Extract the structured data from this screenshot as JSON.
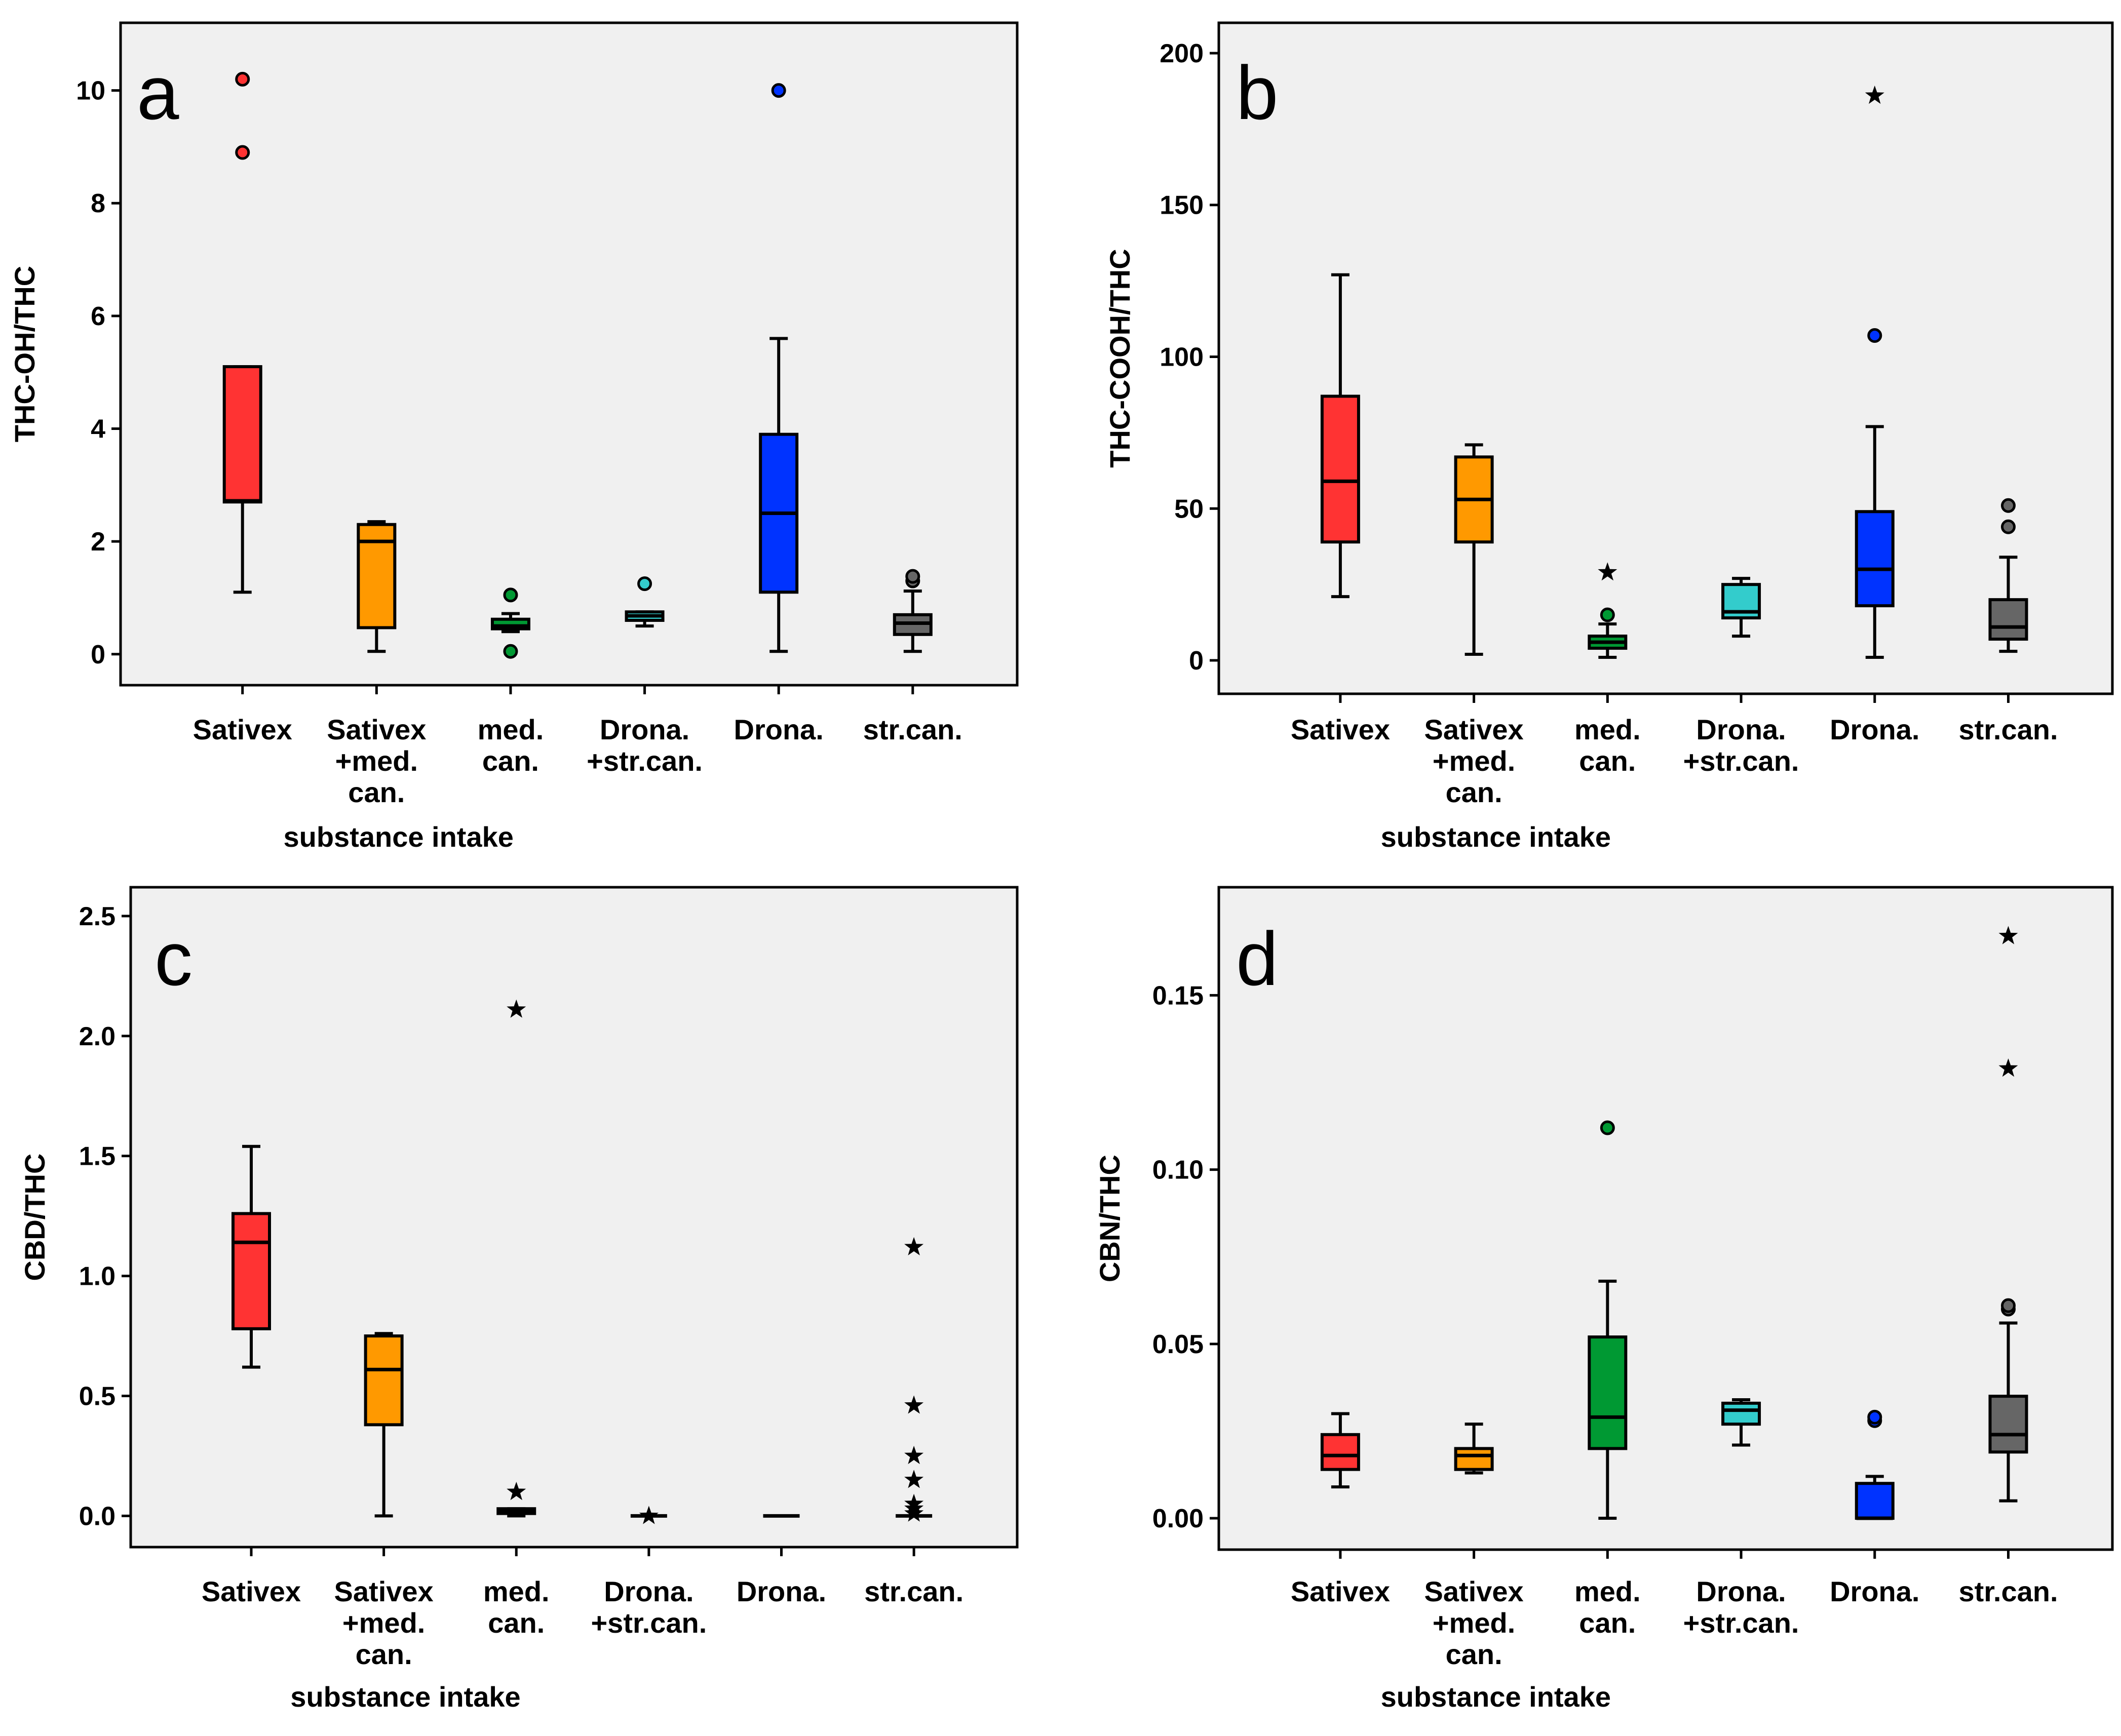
{
  "chart_data": [
    {
      "type": "box",
      "panel_label": "a",
      "title": "",
      "xlabel": "substance intake",
      "ylabel": "THC-OH/THC",
      "ylim": [
        -0.55,
        11.2
      ],
      "yticks": [
        0,
        2,
        4,
        6,
        8,
        10
      ],
      "ytick_labels": [
        "0",
        "2",
        "4",
        "6",
        "8",
        "10"
      ],
      "grid": false,
      "categories": [
        {
          "lines": [
            "Sativex"
          ]
        },
        {
          "lines": [
            "Sativex",
            "+med.",
            "can."
          ]
        },
        {
          "lines": [
            "med.",
            "can."
          ]
        },
        {
          "lines": [
            "Drona.",
            "+str.can."
          ]
        },
        {
          "lines": [
            "Drona."
          ]
        },
        {
          "lines": [
            "str.can."
          ]
        }
      ],
      "boxes": [
        {
          "color": "#ff3333",
          "whisker_low": 1.1,
          "q1": 2.7,
          "median": 2.72,
          "q3": 5.1,
          "whisker_high": 5.1,
          "outliers": [
            8.9,
            10.2
          ],
          "extremes": []
        },
        {
          "color": "#ff9900",
          "whisker_low": 0.05,
          "q1": 0.47,
          "median": 2.0,
          "q3": 2.3,
          "whisker_high": 2.35,
          "outliers": [],
          "extremes": []
        },
        {
          "color": "#009933",
          "whisker_low": 0.4,
          "q1": 0.45,
          "median": 0.5,
          "q3": 0.62,
          "whisker_high": 0.72,
          "outliers": [
            0.05,
            1.05
          ],
          "extremes": []
        },
        {
          "color": "#33cccc",
          "whisker_low": 0.5,
          "q1": 0.6,
          "median": 0.68,
          "q3": 0.75,
          "whisker_high": 0.75,
          "outliers": [
            1.25
          ],
          "extremes": []
        },
        {
          "color": "#0033ff",
          "whisker_low": 0.05,
          "q1": 1.1,
          "median": 2.5,
          "q3": 3.9,
          "whisker_high": 5.6,
          "outliers": [
            10.0
          ],
          "extremes": []
        },
        {
          "color": "#666666",
          "whisker_low": 0.05,
          "q1": 0.35,
          "median": 0.55,
          "q3": 0.7,
          "whisker_high": 1.12,
          "outliers": [
            1.3,
            1.38
          ],
          "extremes": []
        }
      ]
    },
    {
      "type": "box",
      "panel_label": "b",
      "title": "",
      "xlabel": "substance intake",
      "ylabel": "THC-COOH/THC",
      "ylim": [
        -11,
        210
      ],
      "yticks": [
        0,
        50,
        100,
        150,
        200
      ],
      "ytick_labels": [
        "0",
        "50",
        "100",
        "150",
        "200"
      ],
      "grid": false,
      "categories": [
        {
          "lines": [
            "Sativex"
          ]
        },
        {
          "lines": [
            "Sativex",
            "+med.",
            "can."
          ]
        },
        {
          "lines": [
            "med.",
            "can."
          ]
        },
        {
          "lines": [
            "Drona.",
            "+str.can."
          ]
        },
        {
          "lines": [
            "Drona."
          ]
        },
        {
          "lines": [
            "str.can."
          ]
        }
      ],
      "boxes": [
        {
          "color": "#ff3333",
          "whisker_low": 21,
          "q1": 39,
          "median": 59,
          "q3": 87,
          "whisker_high": 127,
          "outliers": [],
          "extremes": []
        },
        {
          "color": "#ff9900",
          "whisker_low": 2,
          "q1": 39,
          "median": 53,
          "q3": 67,
          "whisker_high": 71,
          "outliers": [],
          "extremes": []
        },
        {
          "color": "#009933",
          "whisker_low": 1,
          "q1": 4,
          "median": 6,
          "q3": 8,
          "whisker_high": 12,
          "outliers": [
            15
          ],
          "extremes": [
            29
          ]
        },
        {
          "color": "#33cccc",
          "whisker_low": 8,
          "q1": 14,
          "median": 16,
          "q3": 25,
          "whisker_high": 27,
          "outliers": [],
          "extremes": []
        },
        {
          "color": "#0033ff",
          "whisker_low": 1,
          "q1": 18,
          "median": 30,
          "q3": 49,
          "whisker_high": 77,
          "outliers": [
            107
          ],
          "extremes": [
            186
          ]
        },
        {
          "color": "#666666",
          "whisker_low": 3,
          "q1": 7,
          "median": 11,
          "q3": 20,
          "whisker_high": 34,
          "outliers": [
            44,
            51
          ],
          "extremes": []
        }
      ]
    },
    {
      "type": "box",
      "panel_label": "c",
      "title": "",
      "xlabel": "substance intake",
      "ylabel": "CBD/THC",
      "ylim": [
        -0.13,
        2.62
      ],
      "yticks": [
        0.0,
        0.5,
        1.0,
        1.5,
        2.0,
        2.5
      ],
      "ytick_labels": [
        "0.0",
        "0.5",
        "1.0",
        "1.5",
        "2.0",
        "2.5"
      ],
      "grid": false,
      "categories": [
        {
          "lines": [
            "Sativex"
          ]
        },
        {
          "lines": [
            "Sativex",
            "+med.",
            "can."
          ]
        },
        {
          "lines": [
            "med.",
            "can."
          ]
        },
        {
          "lines": [
            "Drona.",
            "+str.can."
          ]
        },
        {
          "lines": [
            "Drona."
          ]
        },
        {
          "lines": [
            "str.can."
          ]
        }
      ],
      "boxes": [
        {
          "color": "#ff3333",
          "whisker_low": 0.62,
          "q1": 0.78,
          "median": 1.14,
          "q3": 1.26,
          "whisker_high": 1.54,
          "outliers": [],
          "extremes": []
        },
        {
          "color": "#ff9900",
          "whisker_low": 0.0,
          "q1": 0.38,
          "median": 0.61,
          "q3": 0.75,
          "whisker_high": 0.76,
          "outliers": [],
          "extremes": []
        },
        {
          "color": "#009933",
          "whisker_low": 0.0,
          "q1": 0.01,
          "median": 0.02,
          "q3": 0.03,
          "whisker_high": 0.03,
          "outliers": [],
          "extremes": [
            0.1,
            2.11
          ]
        },
        {
          "color": "#33cccc",
          "whisker_low": 0.0,
          "q1": 0.0,
          "median": 0.0,
          "q3": 0.0,
          "whisker_high": 0.0,
          "outliers": [],
          "extremes": [
            0.0
          ]
        },
        {
          "color": "#0033ff",
          "whisker_low": 0.0,
          "q1": 0.0,
          "median": 0.0,
          "q3": 0.0,
          "whisker_high": 0.0,
          "outliers": [],
          "extremes": []
        },
        {
          "color": "#666666",
          "whisker_low": 0.0,
          "q1": 0.0,
          "median": 0.0,
          "q3": 0.0,
          "whisker_high": 0.0,
          "outliers": [],
          "extremes": [
            0.01,
            0.03,
            0.05,
            0.15,
            0.25,
            0.46,
            1.12
          ]
        }
      ]
    },
    {
      "type": "box",
      "panel_label": "d",
      "title": "",
      "xlabel": "substance intake",
      "ylabel": "CBN/THC",
      "ylim": [
        -0.009,
        0.181
      ],
      "yticks": [
        0.0,
        0.05,
        0.1,
        0.15
      ],
      "ytick_labels": [
        "0.00",
        "0.05",
        "0.10",
        "0.15"
      ],
      "grid": false,
      "categories": [
        {
          "lines": [
            "Sativex"
          ]
        },
        {
          "lines": [
            "Sativex",
            "+med.",
            "can."
          ]
        },
        {
          "lines": [
            "med.",
            "can."
          ]
        },
        {
          "lines": [
            "Drona.",
            "+str.can."
          ]
        },
        {
          "lines": [
            "Drona."
          ]
        },
        {
          "lines": [
            "str.can."
          ]
        }
      ],
      "boxes": [
        {
          "color": "#ff3333",
          "whisker_low": 0.009,
          "q1": 0.014,
          "median": 0.018,
          "q3": 0.024,
          "whisker_high": 0.03,
          "outliers": [],
          "extremes": []
        },
        {
          "color": "#ff9900",
          "whisker_low": 0.013,
          "q1": 0.014,
          "median": 0.018,
          "q3": 0.02,
          "whisker_high": 0.027,
          "outliers": [],
          "extremes": []
        },
        {
          "color": "#009933",
          "whisker_low": 0.0,
          "q1": 0.02,
          "median": 0.029,
          "q3": 0.052,
          "whisker_high": 0.068,
          "outliers": [
            0.112
          ],
          "extremes": []
        },
        {
          "color": "#33cccc",
          "whisker_low": 0.021,
          "q1": 0.027,
          "median": 0.031,
          "q3": 0.033,
          "whisker_high": 0.034,
          "outliers": [],
          "extremes": []
        },
        {
          "color": "#0033ff",
          "whisker_low": 0.0,
          "q1": 0.0,
          "median": 0.0,
          "q3": 0.01,
          "whisker_high": 0.012,
          "outliers": [
            0.028,
            0.029
          ],
          "extremes": []
        },
        {
          "color": "#666666",
          "whisker_low": 0.005,
          "q1": 0.019,
          "median": 0.024,
          "q3": 0.035,
          "whisker_high": 0.056,
          "outliers": [
            0.06,
            0.061
          ],
          "extremes": [
            0.129,
            0.167
          ]
        }
      ]
    }
  ]
}
